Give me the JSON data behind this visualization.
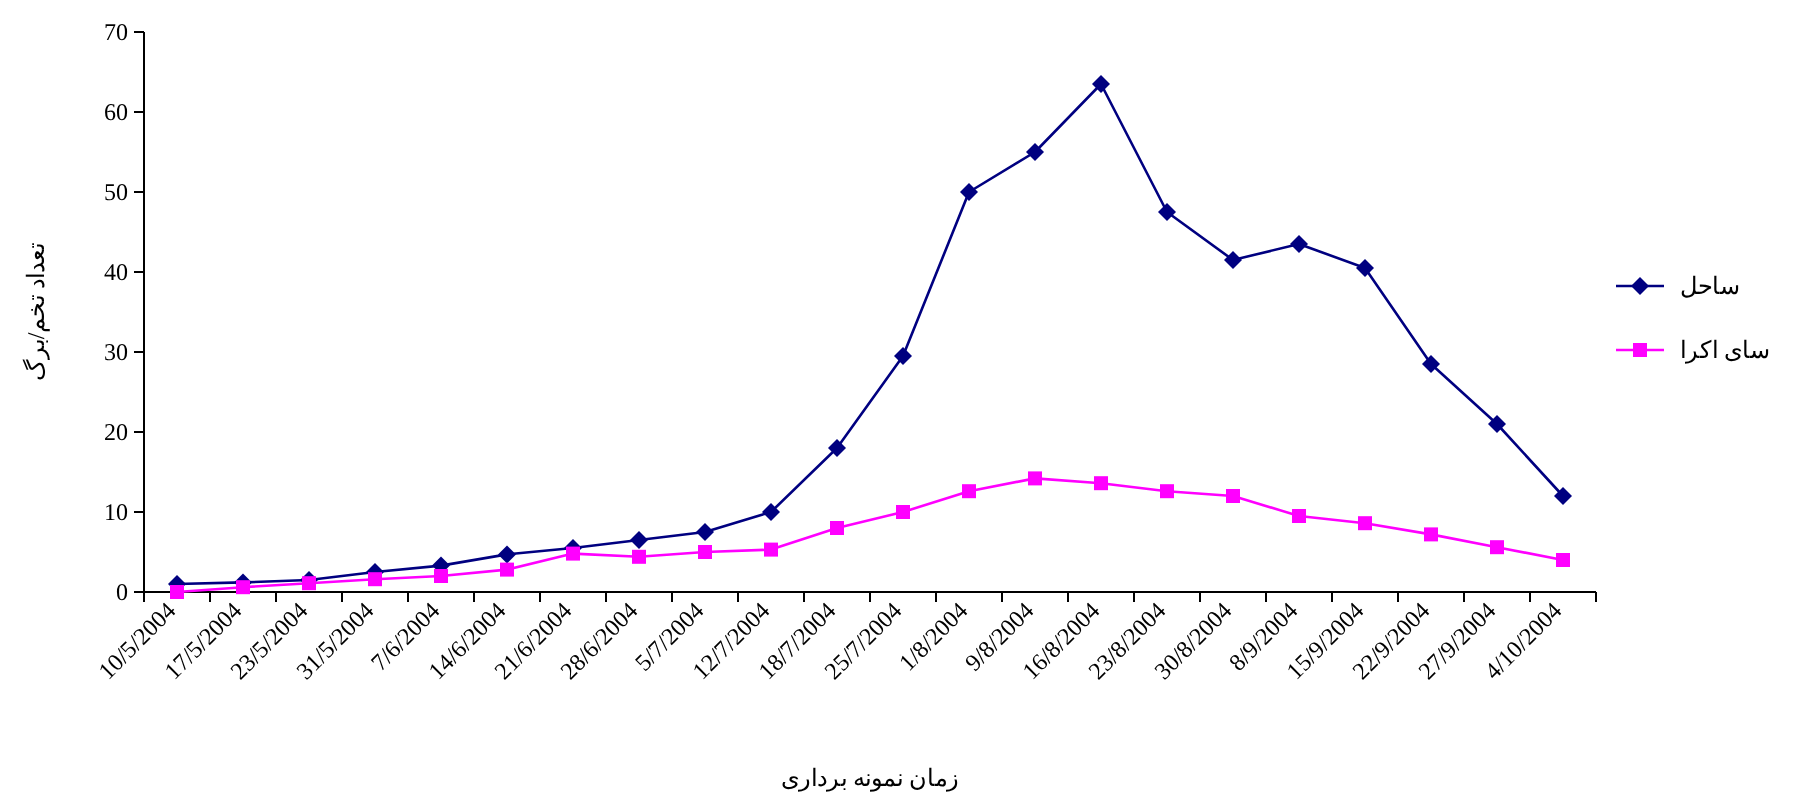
{
  "chart_data": {
    "type": "line",
    "xlabel": "زمان نمونه برداری",
    "ylabel": "تعداد تخم/برگ",
    "categories": [
      "10/5/2004",
      "17/5/2004",
      "23/5/2004",
      "31/5/2004",
      "7/6/2004",
      "14/6/2004",
      "21/6/2004",
      "28/6/2004",
      "5/7/2004",
      "12/7/2004",
      "18/7/2004",
      "25/7/2004",
      "1/8/2004",
      "9/8/2004",
      "16/8/2004",
      "23/8/2004",
      "30/8/2004",
      "8/9/2004",
      "15/9/2004",
      "22/9/2004",
      "27/9/2004",
      "4/10/2004"
    ],
    "series": [
      {
        "name": "ساحل",
        "color": "#000080",
        "marker": "diamond",
        "values": [
          1,
          1.2,
          1.5,
          2.5,
          3.3,
          4.7,
          5.5,
          6.5,
          7.5,
          10,
          18,
          29.5,
          50,
          55,
          63.5,
          47.5,
          41.5,
          43.5,
          40.5,
          28.5,
          21,
          12
        ]
      },
      {
        "name": "سای اکرا",
        "color": "#ff00ff",
        "marker": "square",
        "values": [
          0,
          0.6,
          1.1,
          1.6,
          2,
          2.8,
          4.8,
          4.4,
          5,
          5.3,
          8,
          10,
          12.6,
          14.2,
          13.6,
          12.6,
          12,
          9.5,
          8.6,
          7.2,
          5.6,
          4
        ]
      }
    ],
    "ylim": [
      0,
      70
    ],
    "yticks": [
      0,
      10,
      20,
      30,
      40,
      50,
      60,
      70
    ],
    "grid": false,
    "legend": "right",
    "line_style": "solid"
  }
}
